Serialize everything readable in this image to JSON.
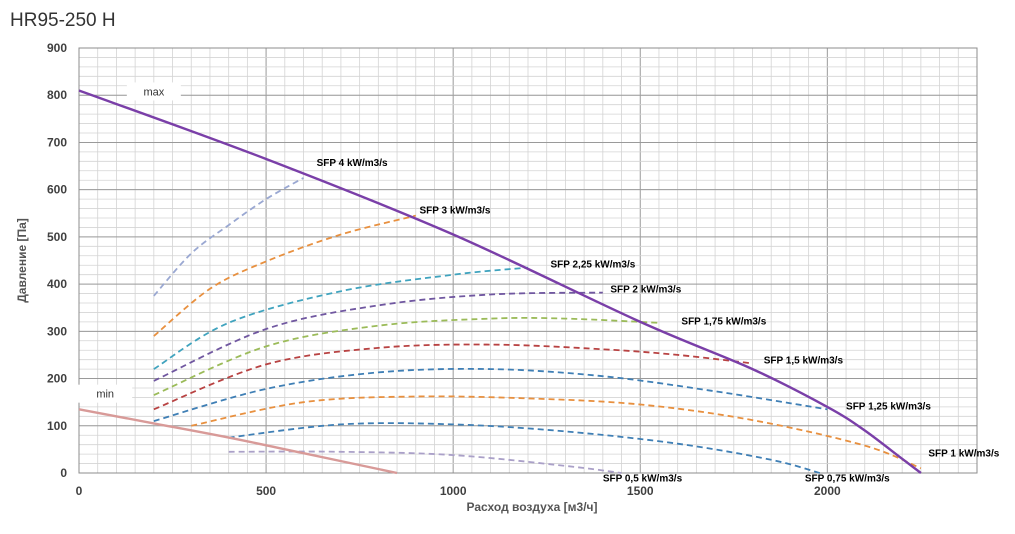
{
  "chart_data": {
    "type": "line",
    "title": "HR95-250 H",
    "xlabel": "Расход воздуха [м3/ч]",
    "ylabel": "Давление [Па]",
    "xlim": [
      0,
      2400
    ],
    "ylim": [
      0,
      900
    ],
    "x_ticks": [
      0,
      500,
      1000,
      1500,
      2000
    ],
    "y_ticks": [
      0,
      100,
      200,
      300,
      400,
      500,
      600,
      700,
      800,
      900
    ],
    "grid": true,
    "limit_lines": [
      {
        "name": "max",
        "color": "#7a3fa8",
        "x": [
          0,
          500,
          1000,
          1500,
          1800,
          2000,
          2100,
          2200,
          2250
        ],
        "y": [
          810,
          665,
          505,
          320,
          220,
          140,
          90,
          30,
          0
        ]
      },
      {
        "name": "min",
        "color": "#d89a98",
        "x": [
          0,
          200,
          400,
          600,
          850
        ],
        "y": [
          135,
          105,
          75,
          42,
          0
        ]
      }
    ],
    "series": [
      {
        "name": "SFP 0,5 kW/m3/s",
        "color": "#aaa0c8",
        "x": [
          400,
          700,
          1000,
          1300,
          1450
        ],
        "y": [
          45,
          45,
          38,
          15,
          0
        ]
      },
      {
        "name": "SFP 0,75 kW/m3/s",
        "color": "#3f7fb5",
        "x": [
          400,
          700,
          1000,
          1300,
          1600,
          1850,
          1980
        ],
        "y": [
          75,
          103,
          103,
          88,
          62,
          28,
          0
        ]
      },
      {
        "name": "SFP 1 kW/m3/s",
        "color": "#e8903f",
        "x": [
          300,
          600,
          900,
          1200,
          1500,
          1800,
          2100,
          2250
        ],
        "y": [
          100,
          150,
          162,
          158,
          145,
          112,
          58,
          10
        ]
      },
      {
        "name": "SFP 1,25 kW/m3/s",
        "color": "#3f7fb5",
        "x": [
          200,
          500,
          800,
          1100,
          1400,
          1700,
          2000
        ],
        "y": [
          110,
          178,
          213,
          220,
          205,
          173,
          135
        ]
      },
      {
        "name": "SFP 1,5 kW/m3/s",
        "color": "#b84242",
        "x": [
          200,
          500,
          800,
          1100,
          1400,
          1600,
          1800
        ],
        "y": [
          135,
          230,
          265,
          272,
          262,
          250,
          232
        ]
      },
      {
        "name": "SFP 1,75 kW/m3/s",
        "color": "#9bbb59",
        "x": [
          200,
          500,
          800,
          1100,
          1300,
          1550
        ],
        "y": [
          165,
          268,
          312,
          327,
          327,
          318
        ]
      },
      {
        "name": "SFP 2 kW/m3/s",
        "color": "#7057a0",
        "x": [
          200,
          500,
          800,
          1100,
          1400
        ],
        "y": [
          195,
          305,
          355,
          378,
          382
        ]
      },
      {
        "name": "SFP 2,25 kW/m3/s",
        "color": "#3fa3be",
        "x": [
          200,
          400,
          700,
          1000,
          1200
        ],
        "y": [
          220,
          318,
          385,
          420,
          435
        ]
      },
      {
        "name": "SFP 3 kW/m3/s",
        "color": "#e8903f",
        "x": [
          200,
          350,
          500,
          700,
          900
        ],
        "y": [
          290,
          390,
          448,
          505,
          545
        ]
      },
      {
        "name": "SFP 4 kW/m3/s",
        "color": "#9aa8d2",
        "x": [
          200,
          300,
          400,
          500,
          600
        ],
        "y": [
          375,
          465,
          525,
          580,
          625
        ]
      }
    ],
    "annotations": [
      {
        "text": "max",
        "x": 200,
        "y": 808
      },
      {
        "text": "min",
        "x": 70,
        "y": 168
      },
      {
        "text": "SFP 4 kW/m3/s",
        "x": 635,
        "y": 650
      },
      {
        "text": "SFP 3 kW/m3/s",
        "x": 910,
        "y": 550
      },
      {
        "text": "SFP 2,25 kW/m3/s",
        "x": 1260,
        "y": 435
      },
      {
        "text": "SFP 2 kW/m3/s",
        "x": 1420,
        "y": 382
      },
      {
        "text": "SFP 1,75 kW/m3/s",
        "x": 1610,
        "y": 315
      },
      {
        "text": "SFP 1,5 kW/m3/s",
        "x": 1830,
        "y": 232
      },
      {
        "text": "SFP 1,25 kW/m3/s",
        "x": 2050,
        "y": 135
      },
      {
        "text": "SFP 1 kW/m3/s",
        "x": 2270,
        "y": 35
      },
      {
        "text": "SFP 0,5 kW/m3/s",
        "x": 1400,
        "y": -18
      },
      {
        "text": "SFP 0,75 kW/m3/s",
        "x": 1940,
        "y": -18
      }
    ]
  }
}
